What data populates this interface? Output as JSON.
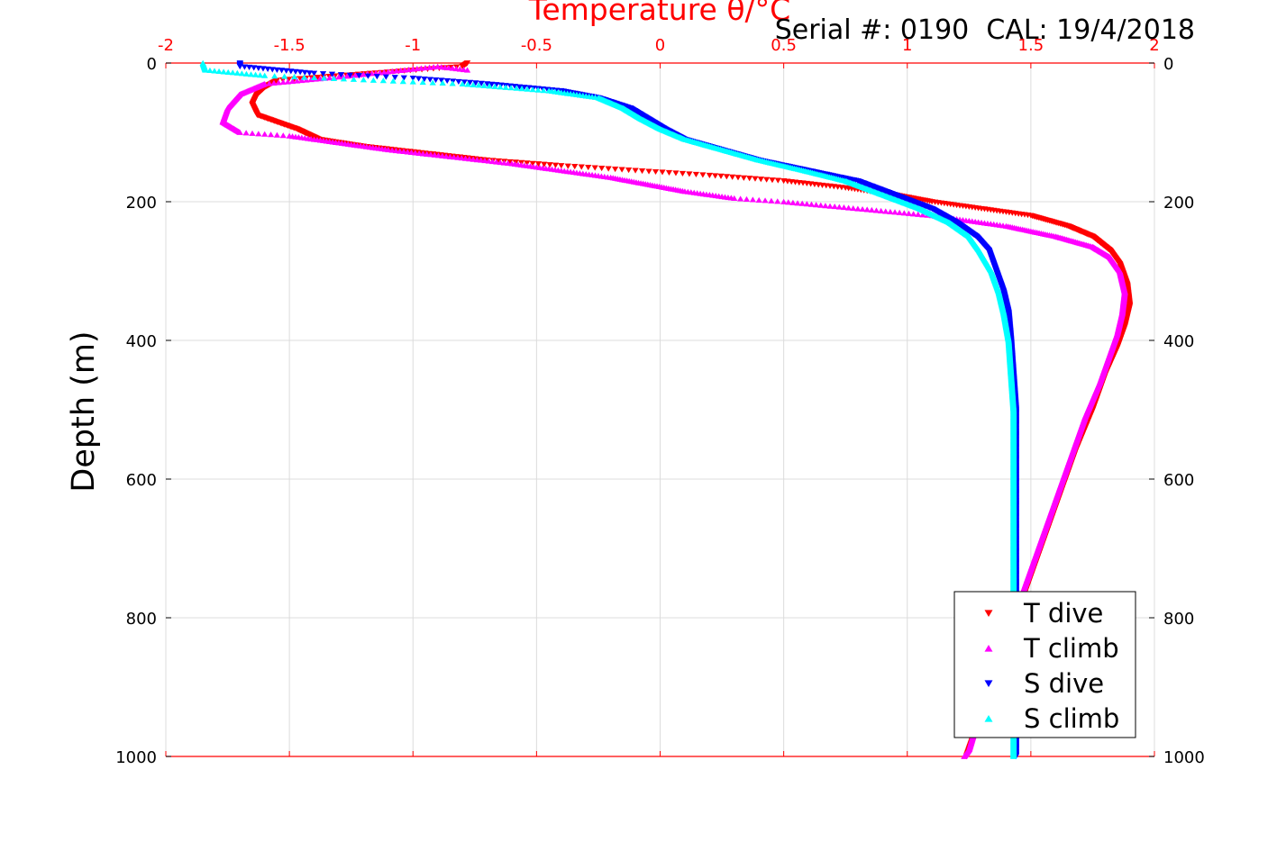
{
  "chart_data": {
    "type": "scatter",
    "title": "Temperature θ/°C",
    "annotation": "Serial #: 0190  CAL: 19/4/2018",
    "xlabel": "Temperature θ/°C",
    "ylabel": "Depth (m)",
    "xlim": [
      -2,
      2
    ],
    "ylim": [
      1000,
      0
    ],
    "y_reversed": true,
    "x_axis_position": "top",
    "y_axis_mirrored_right": true,
    "grid": true,
    "x_ticks": [
      "-2",
      "-1.5",
      "-1",
      "-0.5",
      "0",
      "0.5",
      "1",
      "1.5",
      "2"
    ],
    "y_ticks": [
      "0",
      "200",
      "400",
      "600",
      "800",
      "1000"
    ],
    "legend_position": "bottom-right",
    "colors": {
      "t_dive": "#ff0000",
      "t_climb": "#ff00ff",
      "s_dive": "#0000ff",
      "s_climb": "#00ffff",
      "axis_top": "#ff0000",
      "axis_bottom": "#ff0000"
    },
    "series": [
      {
        "name": "T dive",
        "marker": "triangle-down",
        "color": "#ff0000",
        "points": [
          [
            -0.78,
            0
          ],
          [
            -0.8,
            5
          ],
          [
            -1.55,
            25
          ],
          [
            -1.6,
            35
          ],
          [
            -1.63,
            45
          ],
          [
            -1.65,
            60
          ],
          [
            -1.63,
            75
          ],
          [
            -1.55,
            85
          ],
          [
            -1.47,
            95
          ],
          [
            -1.38,
            110
          ],
          [
            -1.2,
            120
          ],
          [
            -0.95,
            130
          ],
          [
            -0.7,
            140
          ],
          [
            -0.4,
            148
          ],
          [
            -0.1,
            155
          ],
          [
            0.2,
            162
          ],
          [
            0.5,
            170
          ],
          [
            0.75,
            180
          ],
          [
            0.95,
            190
          ],
          [
            1.1,
            200
          ],
          [
            1.3,
            210
          ],
          [
            1.5,
            220
          ],
          [
            1.65,
            235
          ],
          [
            1.75,
            250
          ],
          [
            1.82,
            270
          ],
          [
            1.86,
            290
          ],
          [
            1.89,
            320
          ],
          [
            1.9,
            350
          ],
          [
            1.88,
            380
          ],
          [
            1.85,
            410
          ],
          [
            1.8,
            450
          ],
          [
            1.75,
            500
          ],
          [
            1.68,
            560
          ],
          [
            1.62,
            620
          ],
          [
            1.56,
            680
          ],
          [
            1.5,
            740
          ],
          [
            1.44,
            800
          ],
          [
            1.38,
            860
          ],
          [
            1.32,
            920
          ],
          [
            1.26,
            980
          ],
          [
            1.24,
            1000
          ]
        ]
      },
      {
        "name": "T climb",
        "marker": "triangle-up",
        "color": "#ff00ff",
        "points": [
          [
            -0.78,
            10
          ],
          [
            -0.9,
            5
          ],
          [
            -1.3,
            20
          ],
          [
            -1.6,
            30
          ],
          [
            -1.7,
            45
          ],
          [
            -1.75,
            65
          ],
          [
            -1.77,
            85
          ],
          [
            -1.7,
            100
          ],
          [
            -1.5,
            105
          ],
          [
            -1.3,
            115
          ],
          [
            -1.1,
            125
          ],
          [
            -0.85,
            135
          ],
          [
            -0.6,
            145
          ],
          [
            -0.4,
            155
          ],
          [
            -0.2,
            165
          ],
          [
            -0.05,
            175
          ],
          [
            0.1,
            185
          ],
          [
            0.3,
            195
          ],
          [
            0.5,
            200
          ],
          [
            0.8,
            210
          ],
          [
            1.1,
            220
          ],
          [
            1.4,
            235
          ],
          [
            1.6,
            250
          ],
          [
            1.75,
            265
          ],
          [
            1.82,
            280
          ],
          [
            1.86,
            300
          ],
          [
            1.88,
            330
          ],
          [
            1.87,
            360
          ],
          [
            1.85,
            390
          ],
          [
            1.82,
            420
          ],
          [
            1.78,
            460
          ],
          [
            1.72,
            510
          ],
          [
            1.66,
            570
          ],
          [
            1.6,
            630
          ],
          [
            1.54,
            690
          ],
          [
            1.48,
            750
          ],
          [
            1.42,
            810
          ],
          [
            1.36,
            870
          ],
          [
            1.3,
            930
          ],
          [
            1.25,
            990
          ],
          [
            1.23,
            1000
          ]
        ]
      },
      {
        "name": "S dive",
        "marker": "triangle-down",
        "color": "#0000ff",
        "points": [
          [
            -1.7,
            0
          ],
          [
            -1.7,
            5
          ],
          [
            -1.4,
            15
          ],
          [
            -1.0,
            22
          ],
          [
            -0.7,
            30
          ],
          [
            -0.4,
            40
          ],
          [
            -0.25,
            50
          ],
          [
            -0.12,
            65
          ],
          [
            -0.05,
            80
          ],
          [
            0.02,
            95
          ],
          [
            0.1,
            110
          ],
          [
            0.25,
            125
          ],
          [
            0.4,
            140
          ],
          [
            0.6,
            155
          ],
          [
            0.8,
            170
          ],
          [
            0.95,
            190
          ],
          [
            1.1,
            210
          ],
          [
            1.2,
            230
          ],
          [
            1.28,
            250
          ],
          [
            1.33,
            270
          ],
          [
            1.36,
            300
          ],
          [
            1.39,
            330
          ],
          [
            1.41,
            360
          ],
          [
            1.42,
            400
          ],
          [
            1.43,
            450
          ],
          [
            1.44,
            500
          ],
          [
            1.44,
            560
          ],
          [
            1.44,
            620
          ],
          [
            1.44,
            700
          ],
          [
            1.44,
            780
          ],
          [
            1.44,
            860
          ],
          [
            1.44,
            940
          ],
          [
            1.44,
            1000
          ]
        ]
      },
      {
        "name": "S climb",
        "marker": "triangle-up",
        "color": "#00ffff",
        "points": [
          [
            -1.85,
            0
          ],
          [
            -1.84,
            10
          ],
          [
            -1.6,
            18
          ],
          [
            -1.2,
            24
          ],
          [
            -0.8,
            30
          ],
          [
            -0.45,
            40
          ],
          [
            -0.25,
            50
          ],
          [
            -0.15,
            65
          ],
          [
            -0.08,
            80
          ],
          [
            0.0,
            95
          ],
          [
            0.1,
            110
          ],
          [
            0.25,
            125
          ],
          [
            0.4,
            140
          ],
          [
            0.58,
            155
          ],
          [
            0.75,
            170
          ],
          [
            0.9,
            190
          ],
          [
            1.05,
            210
          ],
          [
            1.17,
            230
          ],
          [
            1.25,
            250
          ],
          [
            1.29,
            270
          ],
          [
            1.34,
            300
          ],
          [
            1.37,
            330
          ],
          [
            1.39,
            360
          ],
          [
            1.41,
            400
          ],
          [
            1.42,
            450
          ],
          [
            1.43,
            500
          ],
          [
            1.43,
            560
          ],
          [
            1.43,
            620
          ],
          [
            1.43,
            700
          ],
          [
            1.43,
            780
          ],
          [
            1.43,
            860
          ],
          [
            1.43,
            940
          ],
          [
            1.43,
            1000
          ]
        ]
      }
    ]
  }
}
